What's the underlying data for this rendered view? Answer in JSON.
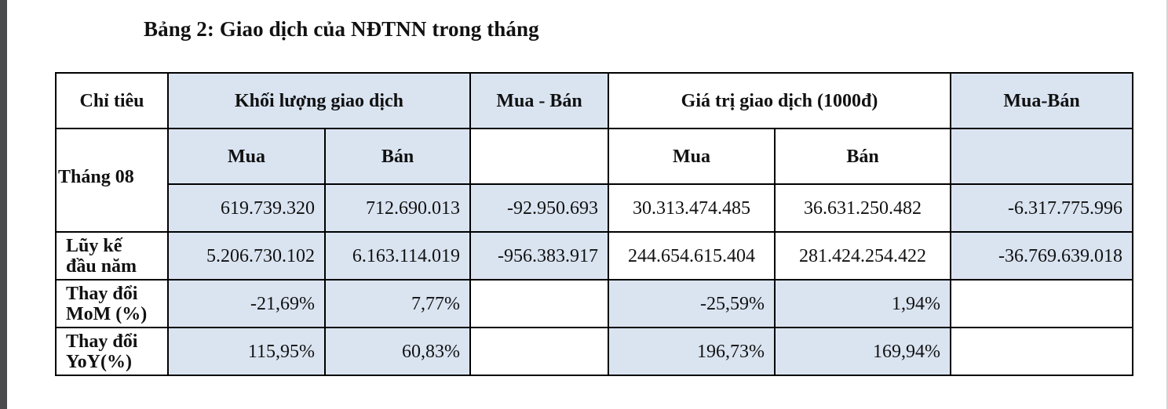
{
  "title": "Bảng 2: Giao dịch của NĐTNN trong tháng",
  "headers": {
    "chi_tieu": "Chỉ tiêu",
    "khoi_luong": "Khối lượng giao dịch",
    "mua_ban_1": "Mua - Bán",
    "gia_tri": "Giá trị giao dịch (1000đ)",
    "mua_ban_2": "Mua-Bán"
  },
  "subheaders": {
    "kl_mua": "Mua",
    "kl_ban": "Bán",
    "gt_mua": "Mua",
    "gt_ban": "Bán"
  },
  "rows": {
    "thang": {
      "label": "Tháng 08",
      "kl_mua": "619.739.320",
      "kl_ban": "712.690.013",
      "kl_net": "-92.950.693",
      "gt_mua": "30.313.474.485",
      "gt_ban": "36.631.250.482",
      "gt_net": "-6.317.775.996"
    },
    "luy_ke": {
      "label_line1": "Lũy kế",
      "label_line2": "đầu năm",
      "kl_mua": "5.206.730.102",
      "kl_ban": "6.163.114.019",
      "kl_net": "-956.383.917",
      "gt_mua": "244.654.615.404",
      "gt_ban": "281.424.254.422",
      "gt_net": "-36.769.639.018"
    },
    "mom": {
      "label_line1": "Thay đổi",
      "label_line2": "MoM (%)",
      "kl_mua": "-21,69%",
      "kl_ban": "7,77%",
      "gt_mua": "-25,59%",
      "gt_ban": "1,94%"
    },
    "yoy": {
      "label_line1": "Thay đổi",
      "label_line2": "YoY(%)",
      "kl_mua": "115,95%",
      "kl_ban": "60,83%",
      "gt_mua": "196,73%",
      "gt_ban": "169,94%"
    }
  }
}
